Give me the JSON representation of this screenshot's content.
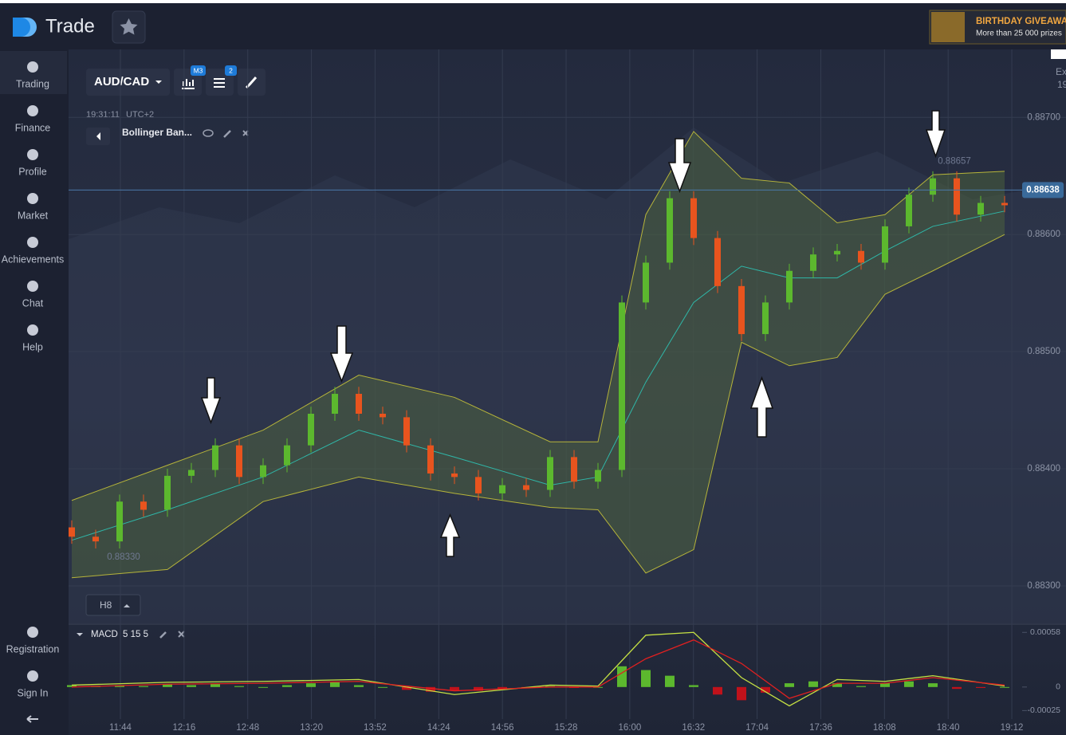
{
  "header": {
    "logo": "Trade",
    "promo_title": "BIRTHDAY GIVEAWA",
    "promo_text": "More than 25 000 prizes"
  },
  "sidebar": {
    "items": [
      "Trading",
      "Finance",
      "Profile",
      "Market",
      "Achievements",
      "Chat",
      "Help"
    ],
    "bottom_items": [
      "Registration",
      "Sign In"
    ]
  },
  "toolbar": {
    "pair": "AUD/CAD",
    "badge_chart": "M3",
    "badge_indicators": "2",
    "time": "19:31:11",
    "timezone": "UTC+2",
    "indicator": "Bollinger Ban...",
    "timeframe": "H8",
    "right_edge": [
      "Ex",
      "19"
    ]
  },
  "chart_data": [
    {
      "type": "candlestick",
      "open": [
        0.8835,
        0.88342,
        0.88338,
        0.88372,
        0.88365,
        0.88394,
        0.88399,
        0.8842,
        0.88393,
        0.88403,
        0.8842,
        0.88447,
        0.88464,
        0.88447,
        0.88444,
        0.8842,
        0.88396,
        0.88393,
        0.88379,
        0.88386,
        0.88382,
        0.8841,
        0.88389,
        0.88399,
        0.88542,
        0.88576,
        0.88631,
        0.88597,
        0.88556,
        0.88515,
        0.88542,
        0.88569,
        0.88583,
        0.88586,
        0.88576,
        0.88607,
        0.88634,
        0.88648,
        0.88617,
        0.88627
      ],
      "high": [
        0.88356,
        0.88348,
        0.88378,
        0.88378,
        0.884,
        0.88405,
        0.88426,
        0.88426,
        0.88409,
        0.88426,
        0.88453,
        0.8847,
        0.8847,
        0.88453,
        0.8845,
        0.88426,
        0.88402,
        0.88399,
        0.88392,
        0.88392,
        0.88416,
        0.88416,
        0.88405,
        0.88548,
        0.88582,
        0.88637,
        0.88637,
        0.88603,
        0.88562,
        0.88548,
        0.88575,
        0.88589,
        0.88592,
        0.88592,
        0.88613,
        0.8864,
        0.88654,
        0.88654,
        0.88633,
        0.88633
      ],
      "low": [
        0.88336,
        0.88332,
        0.88332,
        0.88359,
        0.88359,
        0.88388,
        0.88393,
        0.88387,
        0.88387,
        0.88397,
        0.88414,
        0.88441,
        0.88441,
        0.88438,
        0.88414,
        0.8839,
        0.88387,
        0.88373,
        0.88373,
        0.88376,
        0.88376,
        0.88383,
        0.88383,
        0.88393,
        0.88536,
        0.8857,
        0.88591,
        0.8855,
        0.88509,
        0.88509,
        0.88536,
        0.88563,
        0.88577,
        0.8857,
        0.8857,
        0.88601,
        0.88628,
        0.88611,
        0.88611,
        0.88619
      ],
      "close": [
        0.88342,
        0.88338,
        0.88372,
        0.88365,
        0.88394,
        0.88399,
        0.8842,
        0.88393,
        0.88403,
        0.8842,
        0.88447,
        0.88464,
        0.88447,
        0.88444,
        0.8842,
        0.88396,
        0.88393,
        0.88379,
        0.88386,
        0.88382,
        0.8841,
        0.88389,
        0.88399,
        0.88542,
        0.88576,
        0.88631,
        0.88597,
        0.88556,
        0.88515,
        0.88542,
        0.88569,
        0.88583,
        0.88586,
        0.88576,
        0.88607,
        0.88634,
        0.88648,
        0.88617,
        0.88627,
        0.88625
      ],
      "up_color": "#5cb82e",
      "down_color": "#e8541e",
      "bands": {
        "x": [
          0,
          4,
          8,
          12,
          16,
          20,
          22,
          24,
          26,
          28,
          30,
          32,
          34,
          36,
          39
        ],
        "upper": [
          0.88373,
          0.88403,
          0.88433,
          0.8848,
          0.88461,
          0.88423,
          0.88423,
          0.88617,
          0.88688,
          0.88648,
          0.88644,
          0.8861,
          0.88617,
          0.88651,
          0.88654
        ],
        "middle": [
          0.88339,
          0.88365,
          0.88393,
          0.88433,
          0.8841,
          0.88386,
          0.88393,
          0.88474,
          0.88542,
          0.88573,
          0.88563,
          0.88563,
          0.88586,
          0.88607,
          0.8862
        ],
        "lower": [
          0.88307,
          0.88314,
          0.88372,
          0.88393,
          0.88379,
          0.88367,
          0.88365,
          0.88311,
          0.88331,
          0.88508,
          0.88488,
          0.88495,
          0.88549,
          0.88569,
          0.886
        ],
        "color": "#b6b43a",
        "middle_color": "#2fb7a8",
        "fill": "#5e7a3a"
      },
      "ylim": [
        0.88268,
        0.88756
      ],
      "yticks": [
        {
          "value": 0.883,
          "label": "0.88300"
        },
        {
          "value": 0.884,
          "label": "0.88400"
        },
        {
          "value": 0.885,
          "label": "0.88500"
        },
        {
          "value": 0.886,
          "label": "0.88600"
        },
        {
          "value": 0.887,
          "label": "0.88700"
        }
      ],
      "current_price": 0.88638,
      "high_label": 0.88657,
      "low_label": {
        "value": 0.8833,
        "label": "0.88330"
      },
      "time_labels": [
        "11:44",
        "12:16",
        "12:48",
        "13:20",
        "13:52",
        "14:24",
        "14:56",
        "15:28",
        "16:00",
        "16:32",
        "17:04",
        "17:36",
        "18:08",
        "18:40",
        "19:12"
      ],
      "grid": true
    },
    {
      "type": "macd",
      "title": "MACD",
      "params": "5 15 5",
      "histogram": [
        2e-05,
        1e-05,
        2e-05,
        1e-05,
        3e-05,
        2e-05,
        4e-05,
        1e-05,
        0,
        2e-05,
        4e-05,
        5e-05,
        2e-05,
        0,
        -3e-05,
        -5e-05,
        -4e-05,
        -4e-05,
        -2e-05,
        -1e-05,
        1e-05,
        -1e-05,
        0,
        0.00022,
        0.00018,
        0.00012,
        2e-05,
        -8e-05,
        -0.00014,
        -6e-05,
        4e-05,
        6e-05,
        4e-05,
        1e-05,
        4e-05,
        6e-05,
        4e-05,
        -2e-05,
        -1e-05,
        0
      ],
      "line_x": [
        0,
        4,
        8,
        12,
        16,
        20,
        22,
        24,
        26,
        28,
        30,
        32,
        34,
        36,
        39
      ],
      "macd": [
        2e-05,
        5e-05,
        6e-05,
        8e-05,
        -8e-05,
        2e-05,
        1e-05,
        0.00055,
        0.00058,
        0.0001,
        -0.0002,
        8e-05,
        6e-05,
        0.00012,
        1e-05
      ],
      "signal": [
        0,
        3e-05,
        4e-05,
        6e-05,
        -4e-05,
        0,
        0,
        0.0003,
        0.0005,
        0.00025,
        -0.00012,
        4e-05,
        4e-05,
        0.0001,
        2e-05
      ],
      "pos_color": "#5cb82e",
      "neg_color": "#c0121b",
      "macd_color": "#c5e043",
      "signal_color": "#e02020",
      "ylim": [
        -0.00045,
        0.00065
      ],
      "yticks": [
        -0.00025,
        0,
        0.00058
      ]
    }
  ]
}
